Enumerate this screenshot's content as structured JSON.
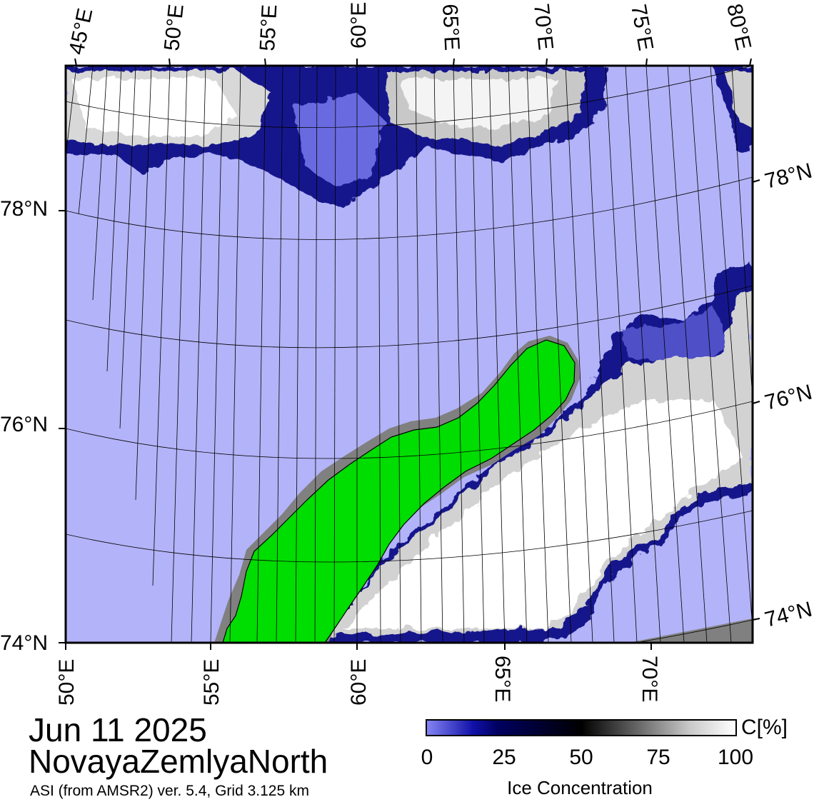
{
  "map": {
    "top_lon_labels": [
      "45°E",
      "50°E",
      "55°E",
      "60°E",
      "65°E",
      "70°E",
      "75°E",
      "80°E"
    ],
    "bottom_lon_labels": [
      "50°E",
      "55°E",
      "60°E",
      "65°E",
      "70°E"
    ],
    "left_lat_labels": [
      "78°N",
      "76°N",
      "74°N"
    ],
    "right_lat_labels": [
      "78°N",
      "76°N",
      "74°N"
    ],
    "colors": {
      "open_water": "#b3b3f9",
      "ice_edge": "#0a0a80",
      "land": "#00dd00",
      "land_mask": "#808080",
      "high_concentration_ice": "#ffffff"
    }
  },
  "info": {
    "date": "Jun 11 2025",
    "region": "NovayaZemlyaNorth",
    "source": "ASI (from AMSR2) ver. 5.4,  Grid 3.125 km"
  },
  "colorbar": {
    "unit": "C[%]",
    "ticks": [
      "0",
      "25",
      "50",
      "75",
      "100"
    ],
    "title": "Ice Concentration",
    "range": [
      0,
      100
    ]
  }
}
